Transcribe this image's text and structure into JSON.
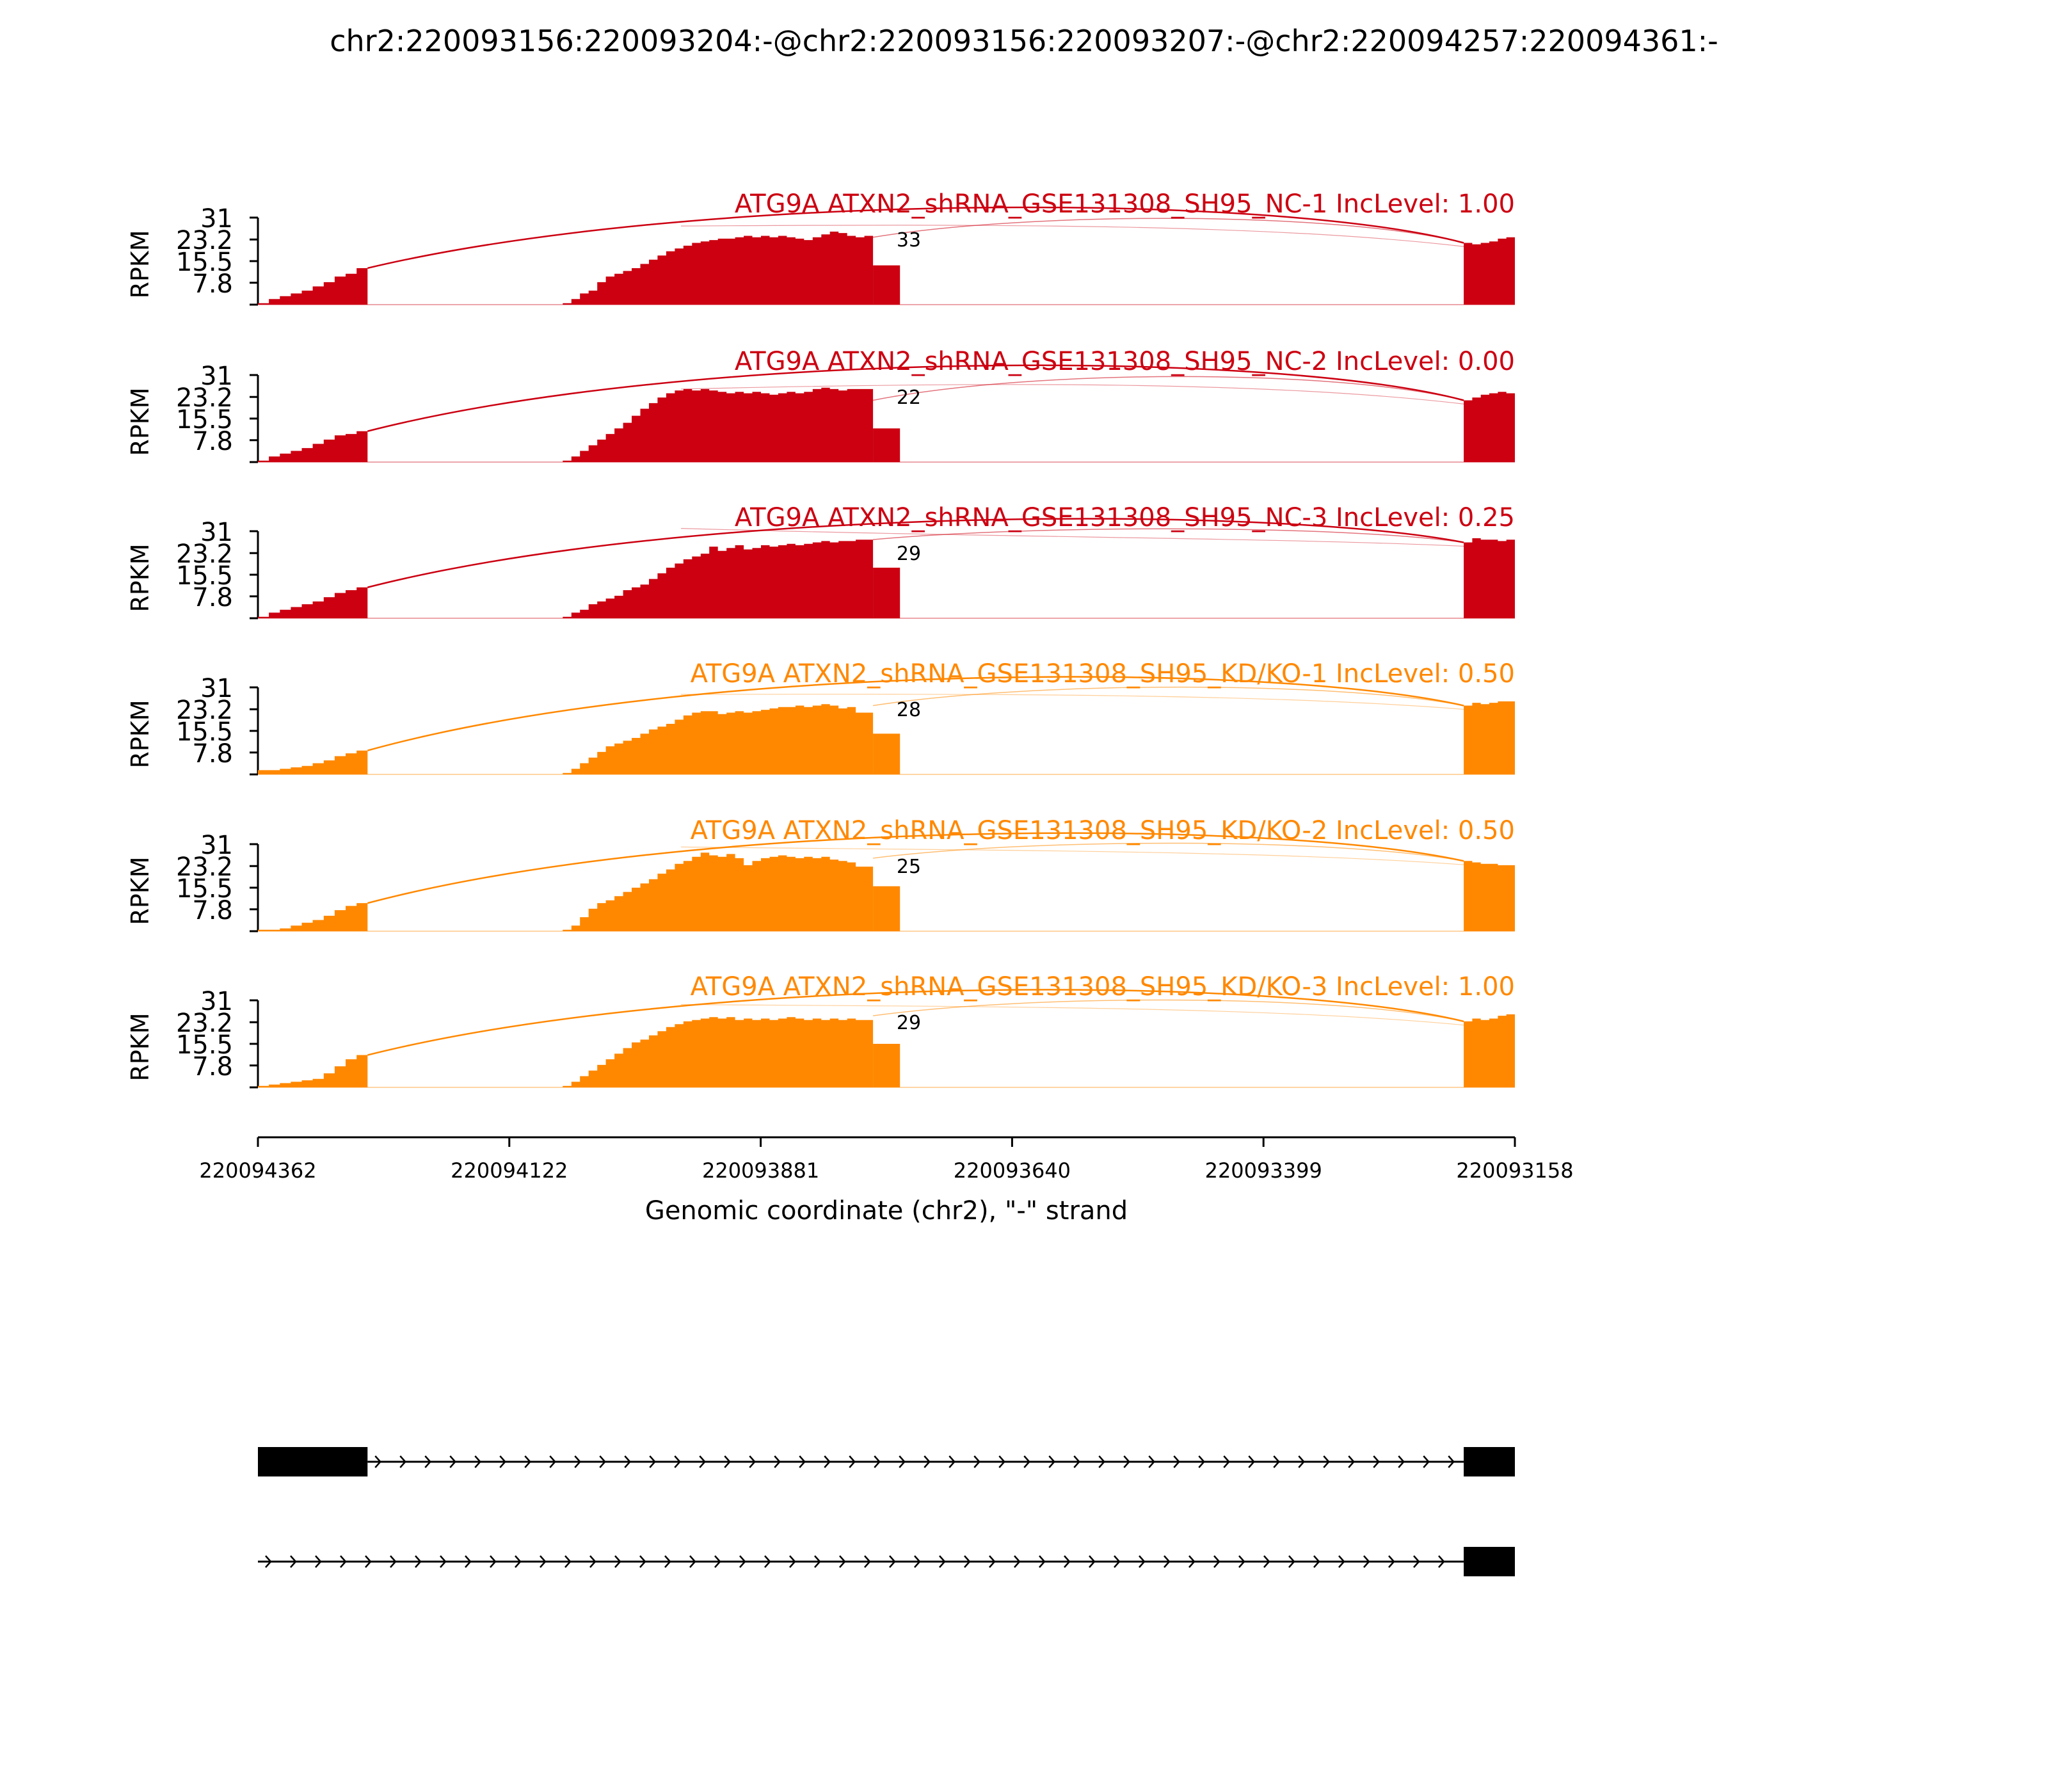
{
  "chart_data": {
    "type": "sashimi",
    "title": "chr2:220093156:220093204:-@chr2:220093156:220093207:-@chr2:220094257:220094361:-",
    "ylabel": "RPKM",
    "yticks": [
      "7.8",
      "15.5",
      "23.2",
      "31"
    ],
    "ylim": [
      0,
      31
    ],
    "xlabel": "Genomic coordinate (chr2), \"-\" strand",
    "xticks": [
      "220094362",
      "220094122",
      "220093881",
      "220093640",
      "220093399",
      "220093158"
    ],
    "xlim": [
      220094362,
      220093158
    ],
    "exons": [
      {
        "start": 220094362,
        "end": 220094257
      },
      {
        "start": 220094070,
        "end": 220093747
      },
      {
        "start": 220093207,
        "end": 220093158
      }
    ],
    "colors": {
      "NC": "#cc0011",
      "KD": "#ff8800"
    },
    "samples": [
      {
        "name": "ATG9A ATXN2_shRNA_GSE131308_SH95_NC-1 IncLevel: 1.00",
        "group": "NC",
        "junction_count": "33",
        "exon1": [
          0.5,
          2,
          3,
          4,
          5,
          6.5,
          8,
          10,
          11,
          13
        ],
        "exon2": [
          0.5,
          2,
          4,
          5,
          8,
          10,
          11,
          12,
          13,
          14.5,
          16,
          17.5,
          19,
          20,
          21,
          22,
          22.5,
          23,
          23.5,
          23.5,
          24,
          24.5,
          24,
          24.5,
          24,
          24.5,
          24,
          23.5,
          23,
          24,
          25,
          26,
          25.5,
          24.5,
          24,
          24.5
        ],
        "exon2_step": 14,
        "exon3": [
          22,
          21.5,
          22,
          22.5,
          23.5,
          24
        ]
      },
      {
        "name": "ATG9A ATXN2_shRNA_GSE131308_SH95_NC-2 IncLevel: 0.00",
        "group": "NC",
        "junction_count": "22",
        "exon1": [
          0.5,
          2,
          3,
          4,
          5,
          6.5,
          8,
          9.5,
          10,
          11
        ],
        "exon2": [
          0.5,
          2,
          4,
          6,
          8,
          10,
          12,
          14,
          16.5,
          19,
          21,
          23,
          24.5,
          25.5,
          26,
          25.5,
          26,
          25.5,
          25,
          24.5,
          25,
          24.5,
          25,
          24.5,
          24,
          24.5,
          25,
          24.5,
          25,
          26,
          26.5,
          26,
          25.5,
          26,
          26,
          26
        ],
        "exon2_step": 12,
        "exon3": [
          22,
          23,
          24,
          24.5,
          25,
          24.5
        ]
      },
      {
        "name": "ATG9A ATXN2_shRNA_GSE131308_SH95_NC-3 IncLevel: 0.25",
        "group": "NC",
        "junction_count": "29",
        "exon1": [
          0.5,
          2,
          3,
          4,
          5,
          6,
          7.5,
          9,
          10,
          11
        ],
        "exon2": [
          0.5,
          2,
          3,
          5,
          6,
          7,
          8,
          10,
          11,
          12,
          14,
          16,
          18,
          19.5,
          21,
          22,
          23,
          25.5,
          24,
          25,
          26,
          24.5,
          25,
          26,
          25.5,
          26,
          26.5,
          26,
          26.5,
          27,
          27.5,
          27,
          27.5,
          27.5,
          28,
          28
        ],
        "exon2_step": 18,
        "exon3": [
          27,
          28.5,
          28,
          28,
          27.5,
          28
        ]
      },
      {
        "name": "ATG9A ATXN2_shRNA_GSE131308_SH95_KD/KO-1 IncLevel: 0.50",
        "group": "KD",
        "junction_count": "28",
        "exon1": [
          1.5,
          1.5,
          2,
          2.5,
          3,
          4,
          5,
          6.5,
          7.5,
          8.5
        ],
        "exon2": [
          0.5,
          2,
          4,
          6,
          8,
          10,
          11,
          12,
          13,
          14.5,
          16,
          17,
          18,
          19.5,
          21,
          22,
          22.5,
          22.5,
          21.5,
          22,
          22.5,
          22,
          22.5,
          23,
          23.5,
          24,
          24,
          24.5,
          24,
          24.5,
          25,
          24.5,
          23.5,
          24,
          22,
          22
        ],
        "exon2_step": 14.5,
        "exon3": [
          24.5,
          25.5,
          25,
          25.5,
          26,
          26
        ]
      },
      {
        "name": "ATG9A ATXN2_shRNA_GSE131308_SH95_KD/KO-2 IncLevel: 0.50",
        "group": "KD",
        "junction_count": "25",
        "exon1": [
          0.5,
          0.5,
          1,
          2,
          3,
          4,
          5.5,
          7.5,
          9,
          10
        ],
        "exon2": [
          0.5,
          2,
          5,
          8,
          10,
          11,
          12.5,
          14,
          15.5,
          17,
          18.5,
          20.5,
          22,
          24,
          25,
          26.5,
          28,
          27,
          26.5,
          27.5,
          26,
          23.5,
          25,
          26,
          26.5,
          27,
          26.5,
          26,
          26.5,
          26,
          26.5,
          25.5,
          25,
          24.5,
          23,
          23
        ],
        "exon2_step": 16,
        "exon3": [
          25,
          24.5,
          24,
          24,
          23.5,
          23.5
        ]
      },
      {
        "name": "ATG9A ATXN2_shRNA_GSE131308_SH95_KD/KO-3 IncLevel: 1.00",
        "group": "KD",
        "junction_count": "29",
        "exon1": [
          0.5,
          1,
          1.5,
          2,
          2.5,
          3,
          5,
          7.5,
          10,
          11.5
        ],
        "exon2": [
          0.5,
          2,
          4,
          6,
          8,
          10,
          12,
          14,
          16,
          17,
          18.5,
          20,
          21.5,
          22.5,
          23.5,
          24,
          24.5,
          25,
          24.5,
          25,
          24,
          24.5,
          24,
          24.5,
          24,
          24.5,
          25,
          24.5,
          24,
          24.5,
          24,
          24.5,
          24,
          24.5,
          24,
          24
        ],
        "exon2_step": 15.5,
        "exon3": [
          23.5,
          24.5,
          24,
          24.5,
          25.5,
          26
        ]
      }
    ],
    "transcripts": [
      {
        "exons": [
          {
            "start": 220094362,
            "end": 220094257
          },
          {
            "start": 220093207,
            "end": 220093158
          }
        ]
      },
      {
        "exons": [
          {
            "start": 220093207,
            "end": 220093158
          }
        ]
      }
    ]
  }
}
